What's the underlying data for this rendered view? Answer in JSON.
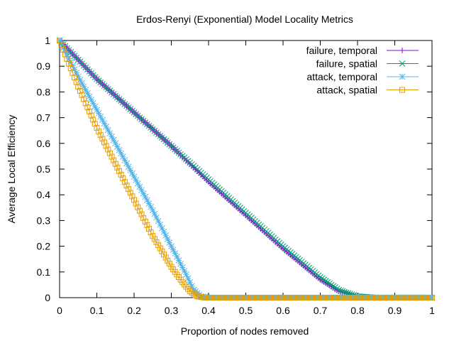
{
  "chart_data": {
    "type": "line",
    "title": "Erdos-Renyi (Exponential) Model Locality Metrics",
    "xlabel": "Proportion of nodes removed",
    "ylabel": "Average Local Efficiency",
    "xlim": [
      0,
      1
    ],
    "ylim": [
      0,
      1
    ],
    "xticks": [
      "0",
      "0.1",
      "0.2",
      "0.3",
      "0.4",
      "0.5",
      "0.6",
      "0.7",
      "0.8",
      "0.9",
      "1"
    ],
    "yticks": [
      "0",
      "0.1",
      "0.2",
      "0.3",
      "0.4",
      "0.5",
      "0.6",
      "0.7",
      "0.8",
      "0.9",
      "1"
    ],
    "grid": false,
    "legend_position": "top-right",
    "series": [
      {
        "name": "failure, temporal",
        "color": "#9400d3",
        "marker": "plus",
        "x": [
          0,
          0.1,
          0.2,
          0.3,
          0.4,
          0.5,
          0.6,
          0.7,
          0.75,
          0.8,
          0.85,
          1.0
        ],
        "y": [
          1.0,
          0.85,
          0.72,
          0.59,
          0.45,
          0.32,
          0.19,
          0.07,
          0.025,
          0.005,
          0.0,
          0.0
        ]
      },
      {
        "name": "failure, spatial",
        "color": "#009e73",
        "marker": "cross",
        "x": [
          0,
          0.1,
          0.2,
          0.3,
          0.4,
          0.5,
          0.6,
          0.7,
          0.75,
          0.8,
          0.85,
          1.0
        ],
        "y": [
          1.0,
          0.85,
          0.72,
          0.59,
          0.46,
          0.33,
          0.2,
          0.08,
          0.03,
          0.005,
          0.0,
          0.0
        ]
      },
      {
        "name": "attack, temporal",
        "color": "#56b4e9",
        "marker": "star",
        "x": [
          0,
          0.05,
          0.1,
          0.15,
          0.2,
          0.25,
          0.3,
          0.34,
          0.36,
          0.38,
          0.4,
          1.0
        ],
        "y": [
          1.0,
          0.86,
          0.73,
          0.6,
          0.47,
          0.34,
          0.2,
          0.09,
          0.03,
          0.005,
          0.0,
          0.0
        ]
      },
      {
        "name": "attack, spatial",
        "color": "#e69f00",
        "marker": "square",
        "x": [
          0,
          0.05,
          0.1,
          0.15,
          0.2,
          0.25,
          0.3,
          0.33,
          0.35,
          0.37,
          0.39,
          1.0
        ],
        "y": [
          1.0,
          0.82,
          0.66,
          0.52,
          0.38,
          0.24,
          0.12,
          0.06,
          0.025,
          0.005,
          0.0,
          0.0
        ]
      }
    ]
  }
}
